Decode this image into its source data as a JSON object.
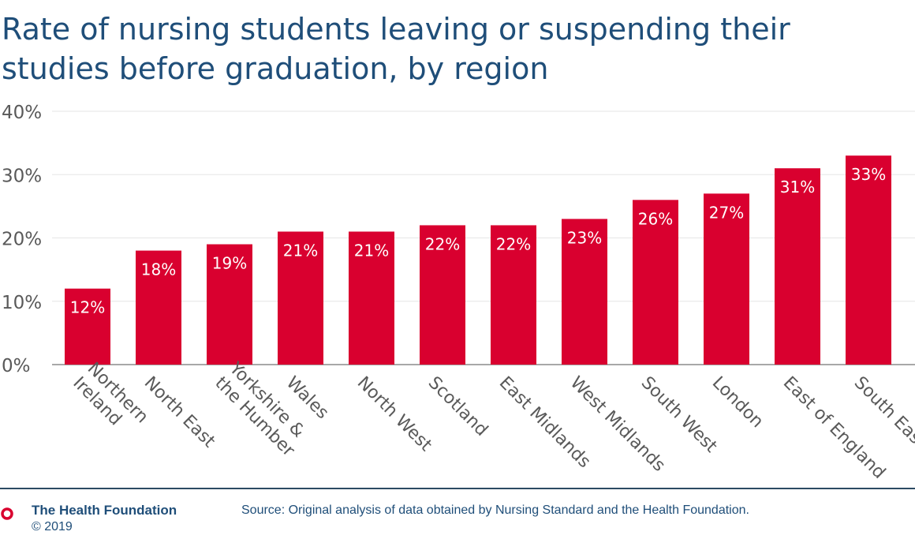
{
  "chart_data": {
    "type": "bar",
    "title": "Rate of nursing students leaving or suspending their studies before graduation, by region",
    "categories": [
      "Northern Ireland",
      "North East",
      "Yorkshire & the Humber",
      "Wales",
      "North West",
      "Scotland",
      "East Midlands",
      "West Midlands",
      "South West",
      "London",
      "East of England",
      "South East"
    ],
    "category_lines": [
      [
        "Northern",
        "Ireland"
      ],
      [
        "North East"
      ],
      [
        "Yorkshire &",
        "the Humber"
      ],
      [
        "Wales"
      ],
      [
        "North West"
      ],
      [
        "Scotland"
      ],
      [
        "East Midlands"
      ],
      [
        "West Midlands"
      ],
      [
        "South West"
      ],
      [
        "London"
      ],
      [
        "East of England"
      ],
      [
        "South East"
      ]
    ],
    "values": [
      12,
      18,
      19,
      21,
      21,
      22,
      22,
      23,
      26,
      27,
      31,
      33
    ],
    "value_labels": [
      "12%",
      "18%",
      "19%",
      "21%",
      "21%",
      "22%",
      "22%",
      "23%",
      "26%",
      "27%",
      "31%",
      "33%"
    ],
    "y_ticks": [
      0,
      10,
      20,
      30,
      40
    ],
    "y_tick_labels": [
      "0%",
      "10%",
      "20%",
      "30%",
      "40%"
    ],
    "ylim": [
      0,
      40
    ],
    "grid": true,
    "legend": "none",
    "bar_color": "#d9002f",
    "label_color": "#ffffff"
  },
  "footer": {
    "brand": "The Health Foundation",
    "copyright": "© 2019",
    "source": "Source: Original analysis of data obtained by Nursing Standard and the Health Foundation."
  },
  "colors": {
    "title": "#1f4e79",
    "axis_text": "#595959",
    "grid": "#e6e6e6",
    "logo": "#d9002f"
  }
}
